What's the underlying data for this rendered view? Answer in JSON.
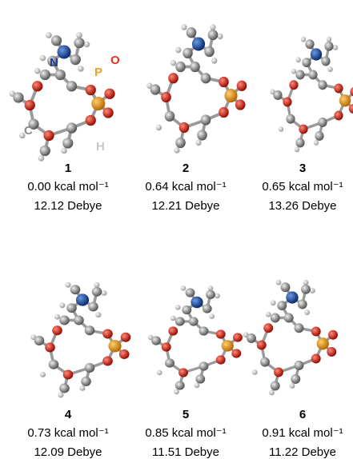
{
  "atom_labels": {
    "N": "N",
    "P": "P",
    "O": "O",
    "C": "C",
    "H": "H"
  },
  "conformers": [
    {
      "number": "1",
      "energy": "0.00 kcal mol⁻¹",
      "dipole": "12.12 Debye"
    },
    {
      "number": "2",
      "energy": "0.64 kcal mol⁻¹",
      "dipole": "12.21 Debye"
    },
    {
      "number": "3",
      "energy": "0.65 kcal mol⁻¹",
      "dipole": "13.26 Debye"
    },
    {
      "number": "4",
      "energy": "0.73 kcal mol⁻¹",
      "dipole": "12.09 Debye"
    },
    {
      "number": "5",
      "energy": "0.85 kcal mol⁻¹",
      "dipole": "11.51 Debye"
    },
    {
      "number": "6",
      "energy": "0.91 kcal mol⁻¹",
      "dipole": "11.22 Debye"
    }
  ]
}
